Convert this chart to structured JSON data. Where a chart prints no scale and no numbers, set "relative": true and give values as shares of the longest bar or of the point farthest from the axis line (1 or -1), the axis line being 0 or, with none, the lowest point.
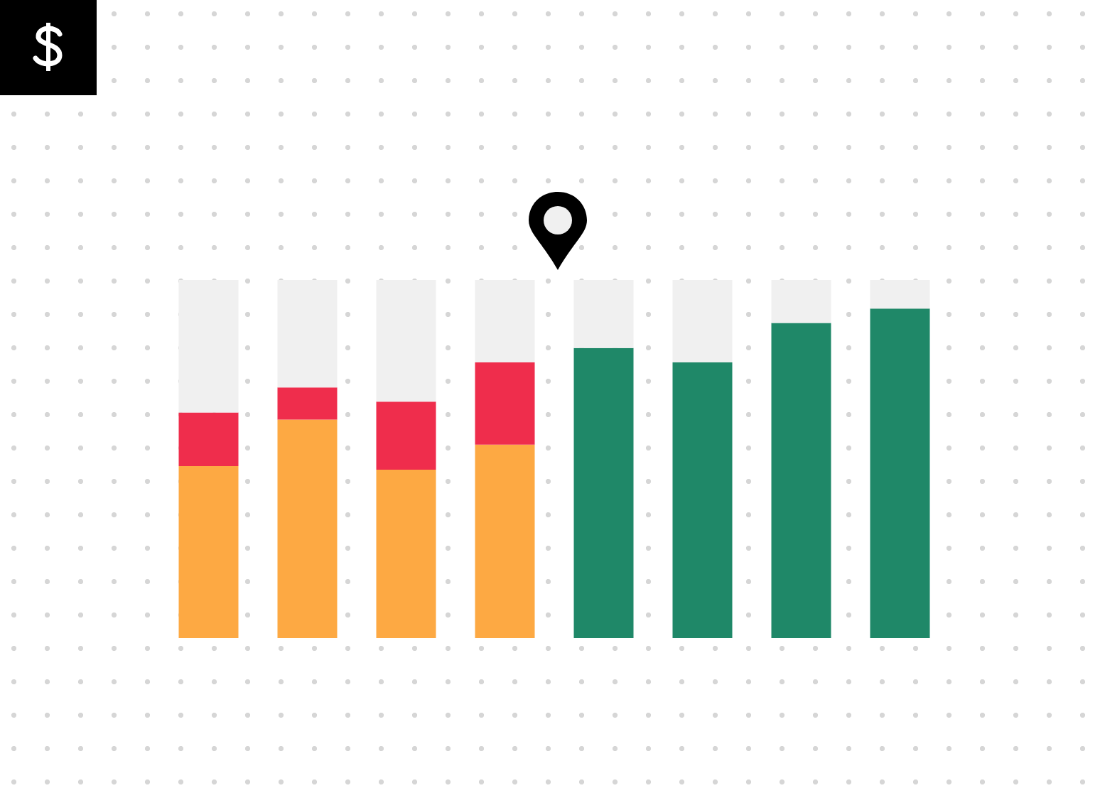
{
  "chart_data": {
    "type": "bar",
    "relative": true,
    "stacked": true,
    "categories": [
      null,
      null,
      null,
      null,
      null,
      null,
      null,
      null
    ],
    "series": [
      {
        "color": "#fda943",
        "values": [
          0.48,
          0.61,
          0.47,
          0.54,
          null,
          null,
          null,
          null
        ]
      },
      {
        "color": "#ef2d4c",
        "values": [
          0.15,
          0.09,
          0.19,
          0.23,
          null,
          null,
          null,
          null
        ]
      },
      {
        "color": "#1f8868",
        "values": [
          null,
          null,
          null,
          null,
          0.81,
          0.77,
          0.88,
          0.92
        ]
      },
      {
        "color": "#f0f0f0",
        "values": [
          0.37,
          0.3,
          0.34,
          0.23,
          0.19,
          0.23,
          0.12,
          0.08
        ]
      }
    ]
  }
}
